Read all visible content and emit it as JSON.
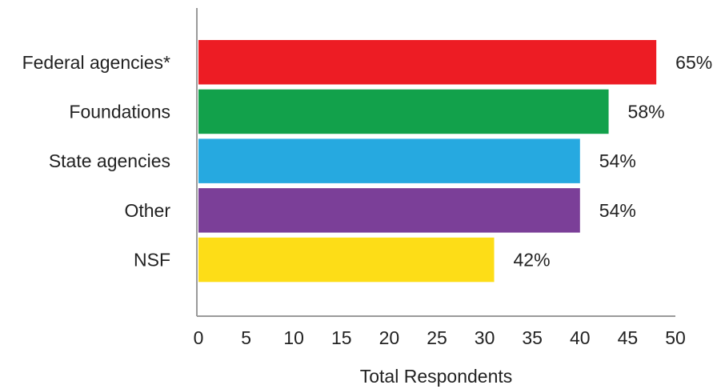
{
  "chart_data": {
    "type": "bar",
    "orientation": "horizontal",
    "categories": [
      "Federal agencies*",
      "Foundations",
      "State agencies",
      "Other",
      "NSF"
    ],
    "values": [
      48,
      43,
      40,
      40,
      31
    ],
    "data_labels": [
      "65%",
      "58%",
      "54%",
      "54%",
      "42%"
    ],
    "colors": [
      "#ed1c24",
      "#12a14b",
      "#26a9e0",
      "#7b3f98",
      "#fddd17"
    ],
    "xlabel": "Total Respondents",
    "ylabel": "",
    "title": "",
    "xlim": [
      0,
      50
    ],
    "xticks": [
      0,
      5,
      10,
      15,
      20,
      25,
      30,
      35,
      40,
      45,
      50
    ],
    "grid": false,
    "legend": "none"
  }
}
